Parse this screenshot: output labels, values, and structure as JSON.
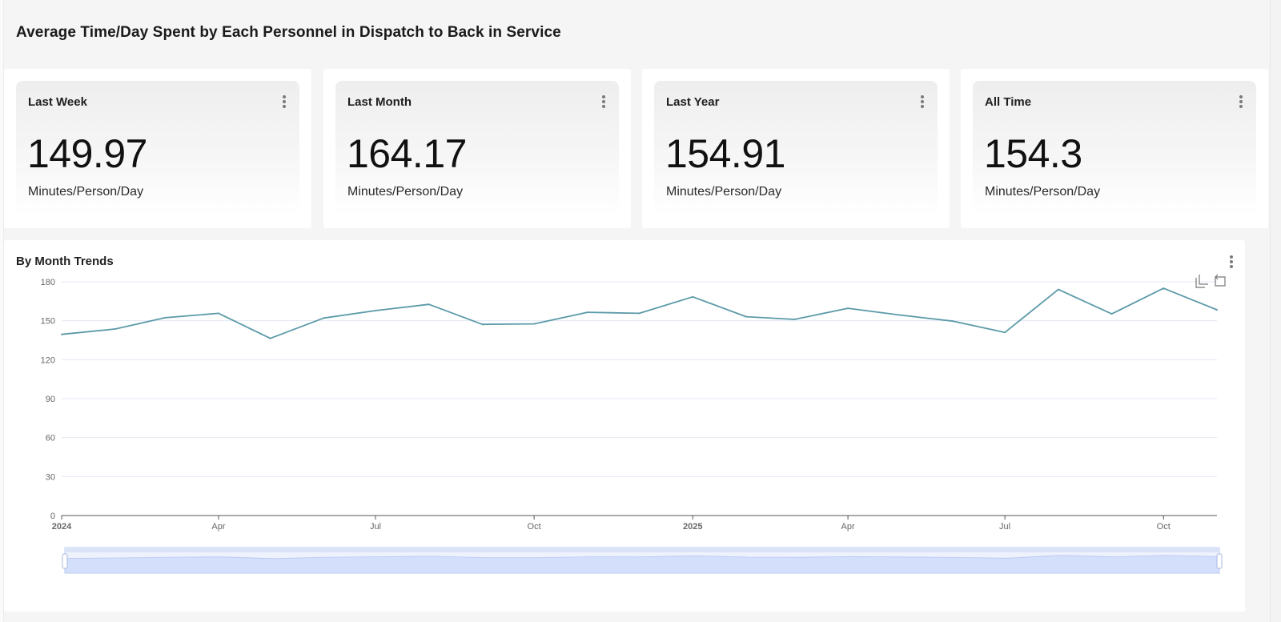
{
  "page": {
    "title": "Average Time/Day Spent by Each Personnel in Dispatch to Back in Service"
  },
  "cards": [
    {
      "title": "Last Week",
      "value": "149.97",
      "unit": "Minutes/Person/Day"
    },
    {
      "title": "Last Month",
      "value": "164.17",
      "unit": "Minutes/Person/Day"
    },
    {
      "title": "Last Year",
      "value": "154.91",
      "unit": "Minutes/Person/Day"
    },
    {
      "title": "All Time",
      "value": "154.3",
      "unit": "Minutes/Person/Day"
    }
  ],
  "chart": {
    "title": "By Month Trends"
  },
  "toolbox": {
    "icons": [
      "data-zoom-icon",
      "zoom-reset-icon"
    ]
  },
  "colors": {
    "line": "#5b9aa8",
    "grid": "#e3e8f3",
    "zoom_fill": "#d4dffb",
    "zoom_border": "#c2cff2"
  },
  "chart_data": {
    "type": "line",
    "title": "",
    "xlabel": "",
    "ylabel": "",
    "ylim": [
      0,
      180
    ],
    "y_ticks": [
      0,
      30,
      60,
      90,
      120,
      150,
      180
    ],
    "x_tick_labels": [
      {
        "date": "2024-01-01",
        "label": "2024",
        "bold": true
      },
      {
        "date": "2024-04-01",
        "label": "Apr",
        "bold": false
      },
      {
        "date": "2024-07-01",
        "label": "Jul",
        "bold": false
      },
      {
        "date": "2024-10-01",
        "label": "Oct",
        "bold": false
      },
      {
        "date": "2025-01-01",
        "label": "2025",
        "bold": true
      },
      {
        "date": "2025-04-01",
        "label": "Apr",
        "bold": false
      },
      {
        "date": "2025-07-01",
        "label": "Jul",
        "bold": false
      },
      {
        "date": "2025-10-01",
        "label": "Oct",
        "bold": false
      }
    ],
    "x_range": [
      "2024-01-01",
      "2025-11-01"
    ],
    "grid": true,
    "data_zoom_slider": true,
    "series": [
      {
        "x": [
          "2024-01-01",
          "2024-02-01",
          "2024-03-01",
          "2024-04-01",
          "2024-05-01",
          "2024-06-01",
          "2024-07-01",
          "2024-08-01",
          "2024-09-01",
          "2024-10-01",
          "2024-11-01",
          "2024-12-01",
          "2025-01-01",
          "2025-02-01",
          "2025-03-01",
          "2025-04-01",
          "2025-05-01",
          "2025-06-01",
          "2025-07-01",
          "2025-08-01",
          "2025-09-01",
          "2025-10-01",
          "2025-11-01"
        ],
        "values": [
          139.5,
          143.6,
          152.3,
          155.7,
          136.4,
          152.1,
          157.8,
          162.6,
          147.2,
          147.6,
          156.5,
          155.7,
          168.4,
          153.1,
          151.0,
          159.6,
          154.4,
          149.7,
          141.0,
          174.1,
          155.3,
          175.0,
          158.4
        ]
      }
    ]
  }
}
